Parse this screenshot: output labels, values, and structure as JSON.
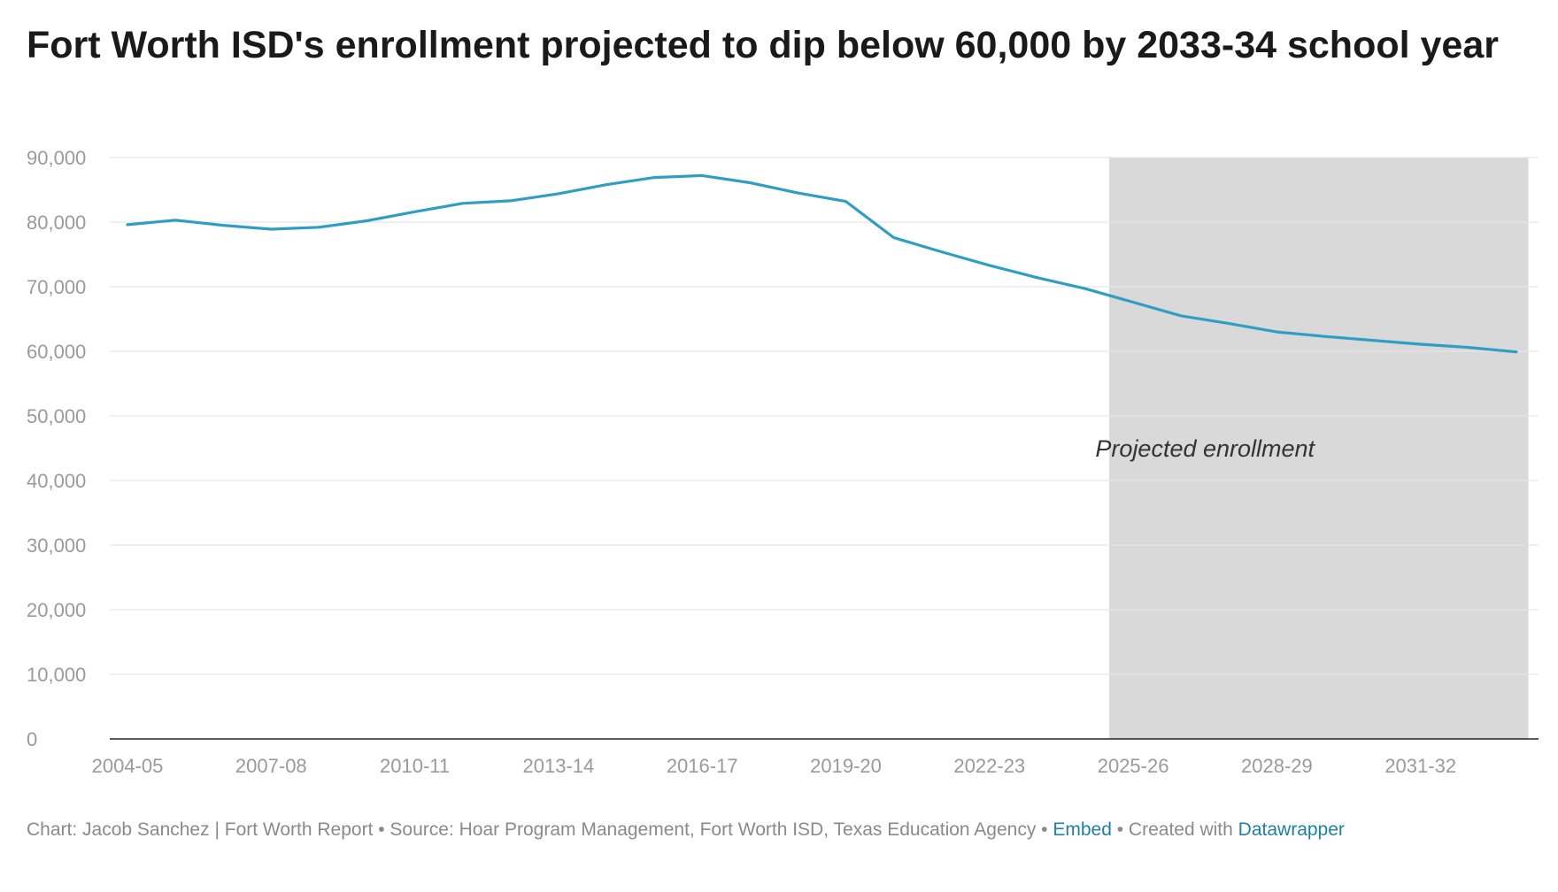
{
  "chart_data": {
    "type": "line",
    "title": "Fort Worth ISD's enrollment projected to dip below 60,000 by 2033-34 school year",
    "xlabel": "",
    "ylabel": "",
    "ylim": [
      0,
      90000
    ],
    "y_ticks": [
      0,
      10000,
      20000,
      30000,
      40000,
      50000,
      60000,
      70000,
      80000,
      90000
    ],
    "y_tick_labels": [
      "0",
      "10,000",
      "20,000",
      "30,000",
      "40,000",
      "50,000",
      "60,000",
      "70,000",
      "80,000",
      "90,000"
    ],
    "x_tick_labels": [
      "2004-05",
      "2007-08",
      "2010-11",
      "2013-14",
      "2016-17",
      "2019-20",
      "2022-23",
      "2025-26",
      "2028-29",
      "2031-32"
    ],
    "x_tick_indices": [
      0,
      3,
      6,
      9,
      12,
      15,
      18,
      21,
      24,
      27
    ],
    "x_count": 30,
    "series": [
      {
        "name": "Enrollment",
        "color": "#2f9ec4",
        "values": [
          79600,
          80300,
          79500,
          78900,
          79200,
          80200,
          81600,
          82900,
          83300,
          84400,
          85800,
          86900,
          87200,
          86100,
          84500,
          83200,
          77600,
          75400,
          73300,
          71400,
          69700,
          67600,
          65500,
          64300,
          63000,
          62300,
          61700,
          61100,
          60600,
          59900
        ]
      }
    ],
    "shaded_region": {
      "label": "Projected enrollment",
      "start_index": 20.5,
      "end_index": 29.25,
      "color": "#d9d9d9"
    },
    "grid": true
  },
  "footer": {
    "credit": "Chart: Jacob Sanchez | Fort Worth Report • Source: Hoar Program Management, Fort Worth ISD, Texas Education Agency •",
    "embed_label": "Embed",
    "created_text": "• Created with",
    "tool_label": "Datawrapper"
  },
  "colors": {
    "line": "#2f9ec4",
    "grid": "#e6e6e6",
    "axis": "#222222",
    "tick_text": "#9a9a9a",
    "link": "#1d81a2"
  }
}
